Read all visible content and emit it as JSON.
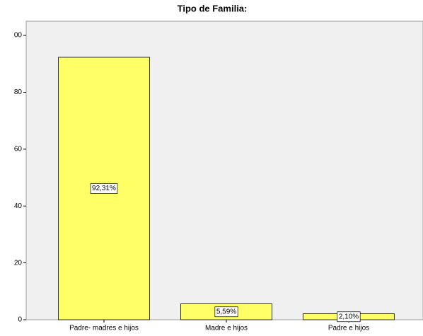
{
  "chart_data": {
    "type": "bar",
    "title": "Tipo de Familia:",
    "categories": [
      "Padre- madres e hijos",
      "Madre e hijos",
      "Padre e hijos"
    ],
    "values": [
      92.31,
      5.59,
      2.1
    ],
    "value_labels": [
      "92,31%",
      "5,59%",
      "2,10%"
    ],
    "color": "#ffff66",
    "ylim": [
      0,
      105
    ],
    "yticks": [
      0,
      20,
      40,
      60,
      80,
      {
        "value": 100,
        "label": "00"
      }
    ]
  }
}
